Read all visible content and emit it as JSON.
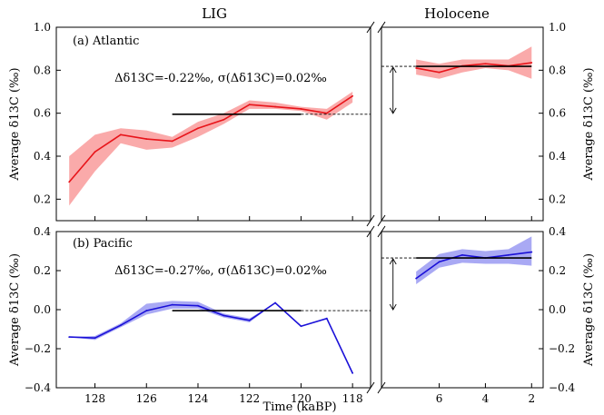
{
  "chart_data": [
    {
      "type": "line",
      "panel_label": "(a) Atlantic",
      "ylabel": "Average δ13C (‰)",
      "ylim": [
        0.1,
        1.0
      ],
      "yticks": [
        0.2,
        0.4,
        0.6,
        0.8,
        1.0
      ],
      "ytick_labels": [
        "0.2",
        "0.4",
        "0.6",
        "0.8",
        "1.0"
      ],
      "annotation": "Δδ13C=-0.22‰, σ(Δδ13C)=0.02‰",
      "color": "#e8141a",
      "band_color": "#f99b9b",
      "lig": {
        "x": [
          129,
          128,
          127,
          126,
          125,
          124,
          123,
          122,
          121,
          120,
          119,
          118
        ],
        "y": [
          0.28,
          0.42,
          0.5,
          0.48,
          0.47,
          0.53,
          0.57,
          0.64,
          0.63,
          0.62,
          0.6,
          0.68
        ],
        "lower": [
          0.17,
          0.33,
          0.46,
          0.43,
          0.44,
          0.49,
          0.55,
          0.62,
          0.62,
          0.61,
          0.57,
          0.65
        ],
        "upper": [
          0.4,
          0.5,
          0.53,
          0.52,
          0.49,
          0.56,
          0.6,
          0.66,
          0.65,
          0.63,
          0.62,
          0.7
        ],
        "mean_line": {
          "x_start": 125,
          "x_end": 120,
          "y": 0.595
        },
        "dashed_extension": {
          "x_start": 120,
          "x_end": 117.3,
          "y": 0.595
        }
      },
      "holocene": {
        "x": [
          7,
          6,
          5,
          4,
          3,
          2
        ],
        "y": [
          0.81,
          0.79,
          0.82,
          0.83,
          0.82,
          0.835
        ],
        "lower": [
          0.78,
          0.76,
          0.79,
          0.81,
          0.8,
          0.76
        ],
        "upper": [
          0.85,
          0.83,
          0.85,
          0.85,
          0.85,
          0.91
        ],
        "mean_line": {
          "x_start": 7,
          "x_end": 2,
          "y": 0.818
        },
        "dashed_extension": {
          "x_start": 8.5,
          "x_end": 7,
          "y": 0.818
        }
      },
      "arrow": {
        "x": 8,
        "y_top": 0.818,
        "y_bottom": 0.595
      }
    },
    {
      "type": "line",
      "panel_label": "(b) Pacific",
      "ylabel": "Average δ13C (‰)",
      "ylim": [
        -0.4,
        0.4
      ],
      "yticks": [
        -0.4,
        -0.2,
        0.0,
        0.2,
        0.4
      ],
      "ytick_labels": [
        "−0.4",
        "−0.2",
        "0.0",
        "0.2",
        "0.4"
      ],
      "annotation": "Δδ13C=-0.27‰, σ(Δδ13C)=0.02‰",
      "color": "#1a10d8",
      "band_color": "#9a9af2",
      "lig": {
        "x": [
          129,
          128,
          127,
          126,
          125,
          124,
          123,
          122,
          121,
          120,
          119,
          118
        ],
        "y": [
          -0.14,
          -0.145,
          -0.08,
          -0.005,
          0.025,
          0.02,
          -0.03,
          -0.055,
          0.035,
          -0.085,
          -0.045,
          -0.325
        ],
        "lower": [
          -0.14,
          -0.155,
          -0.09,
          -0.025,
          0.005,
          0.005,
          -0.04,
          -0.065,
          0.035,
          -0.085,
          -0.045,
          -0.325
        ],
        "upper": [
          -0.14,
          -0.135,
          -0.07,
          0.03,
          0.045,
          0.04,
          -0.02,
          -0.045,
          0.035,
          -0.085,
          -0.045,
          -0.325
        ],
        "mean_line": {
          "x_start": 125,
          "x_end": 120,
          "y": -0.005
        },
        "dashed_extension": {
          "x_start": 120,
          "x_end": 117.3,
          "y": -0.005
        }
      },
      "holocene": {
        "x": [
          7,
          6,
          5,
          4,
          3,
          2
        ],
        "y": [
          0.16,
          0.245,
          0.28,
          0.265,
          0.28,
          0.295
        ],
        "lower": [
          0.13,
          0.215,
          0.24,
          0.235,
          0.235,
          0.225
        ],
        "upper": [
          0.195,
          0.285,
          0.31,
          0.3,
          0.31,
          0.375
        ],
        "mean_line": {
          "x_start": 7,
          "x_end": 2,
          "y": 0.265
        },
        "dashed_extension": {
          "x_start": 8.5,
          "x_end": 7,
          "y": 0.265
        }
      },
      "arrow": {
        "x": 8,
        "y_top": 0.265,
        "y_bottom": -0.005
      }
    }
  ],
  "axes": {
    "lig_title": "LIG",
    "holocene_title": "Holocene",
    "xlabel": "Time (kaBP)",
    "lig_xlim": [
      129.5,
      117.3
    ],
    "holocene_xlim": [
      8.5,
      1.5
    ],
    "lig_xticks": [
      128,
      126,
      124,
      122,
      120,
      118
    ],
    "holocene_xticks": [
      6,
      4,
      2
    ]
  }
}
